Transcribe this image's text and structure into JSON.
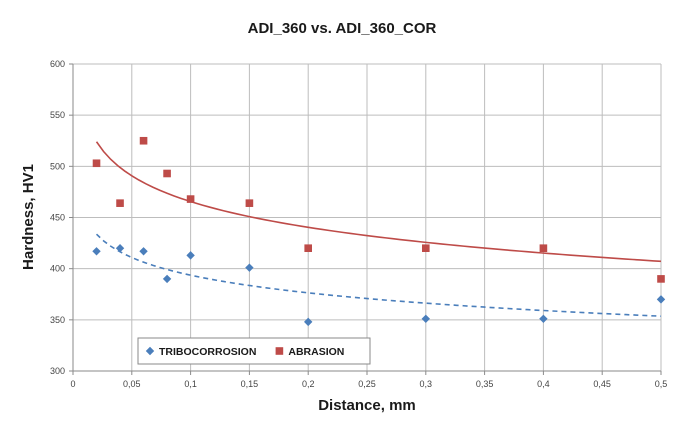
{
  "chart_data": {
    "type": "scatter",
    "title": "ADI_360 vs. ADI_360_COR",
    "xlabel": "Distance, mm",
    "ylabel": "Hardness, HV1",
    "xlim": [
      0,
      0.5
    ],
    "ylim": [
      300,
      600
    ],
    "x_ticks": [
      "0",
      "0,05",
      "0,1",
      "0,15",
      "0,2",
      "0,25",
      "0,3",
      "0,35",
      "0,4",
      "0,45",
      "0,5"
    ],
    "y_ticks": [
      "300",
      "350",
      "400",
      "450",
      "500",
      "550",
      "600"
    ],
    "grid": true,
    "legend_position": "bottom-left",
    "series": [
      {
        "name": "TRIBOCORROSION",
        "marker": "diamond",
        "color": "#4a7ebb",
        "x": [
          0.02,
          0.04,
          0.06,
          0.08,
          0.1,
          0.15,
          0.2,
          0.3,
          0.4,
          0.5
        ],
        "y": [
          417,
          420,
          417,
          390,
          413,
          401,
          348,
          351,
          351,
          370
        ],
        "trendline": {
          "type": "logarithmic",
          "style": "dashed",
          "from": 0.02,
          "to": 0.5,
          "a": -24.9,
          "b": 336.3
        }
      },
      {
        "name": "ABRASION",
        "marker": "square",
        "color": "#be4b48",
        "x": [
          0.02,
          0.04,
          0.06,
          0.08,
          0.1,
          0.15,
          0.2,
          0.3,
          0.4,
          0.5
        ],
        "y": [
          503,
          464,
          525,
          493,
          468,
          464,
          420,
          420,
          420,
          390
        ],
        "trendline": {
          "type": "logarithmic",
          "style": "solid",
          "from": 0.02,
          "to": 0.5,
          "a": -36.3,
          "b": 382.0
        }
      }
    ]
  }
}
